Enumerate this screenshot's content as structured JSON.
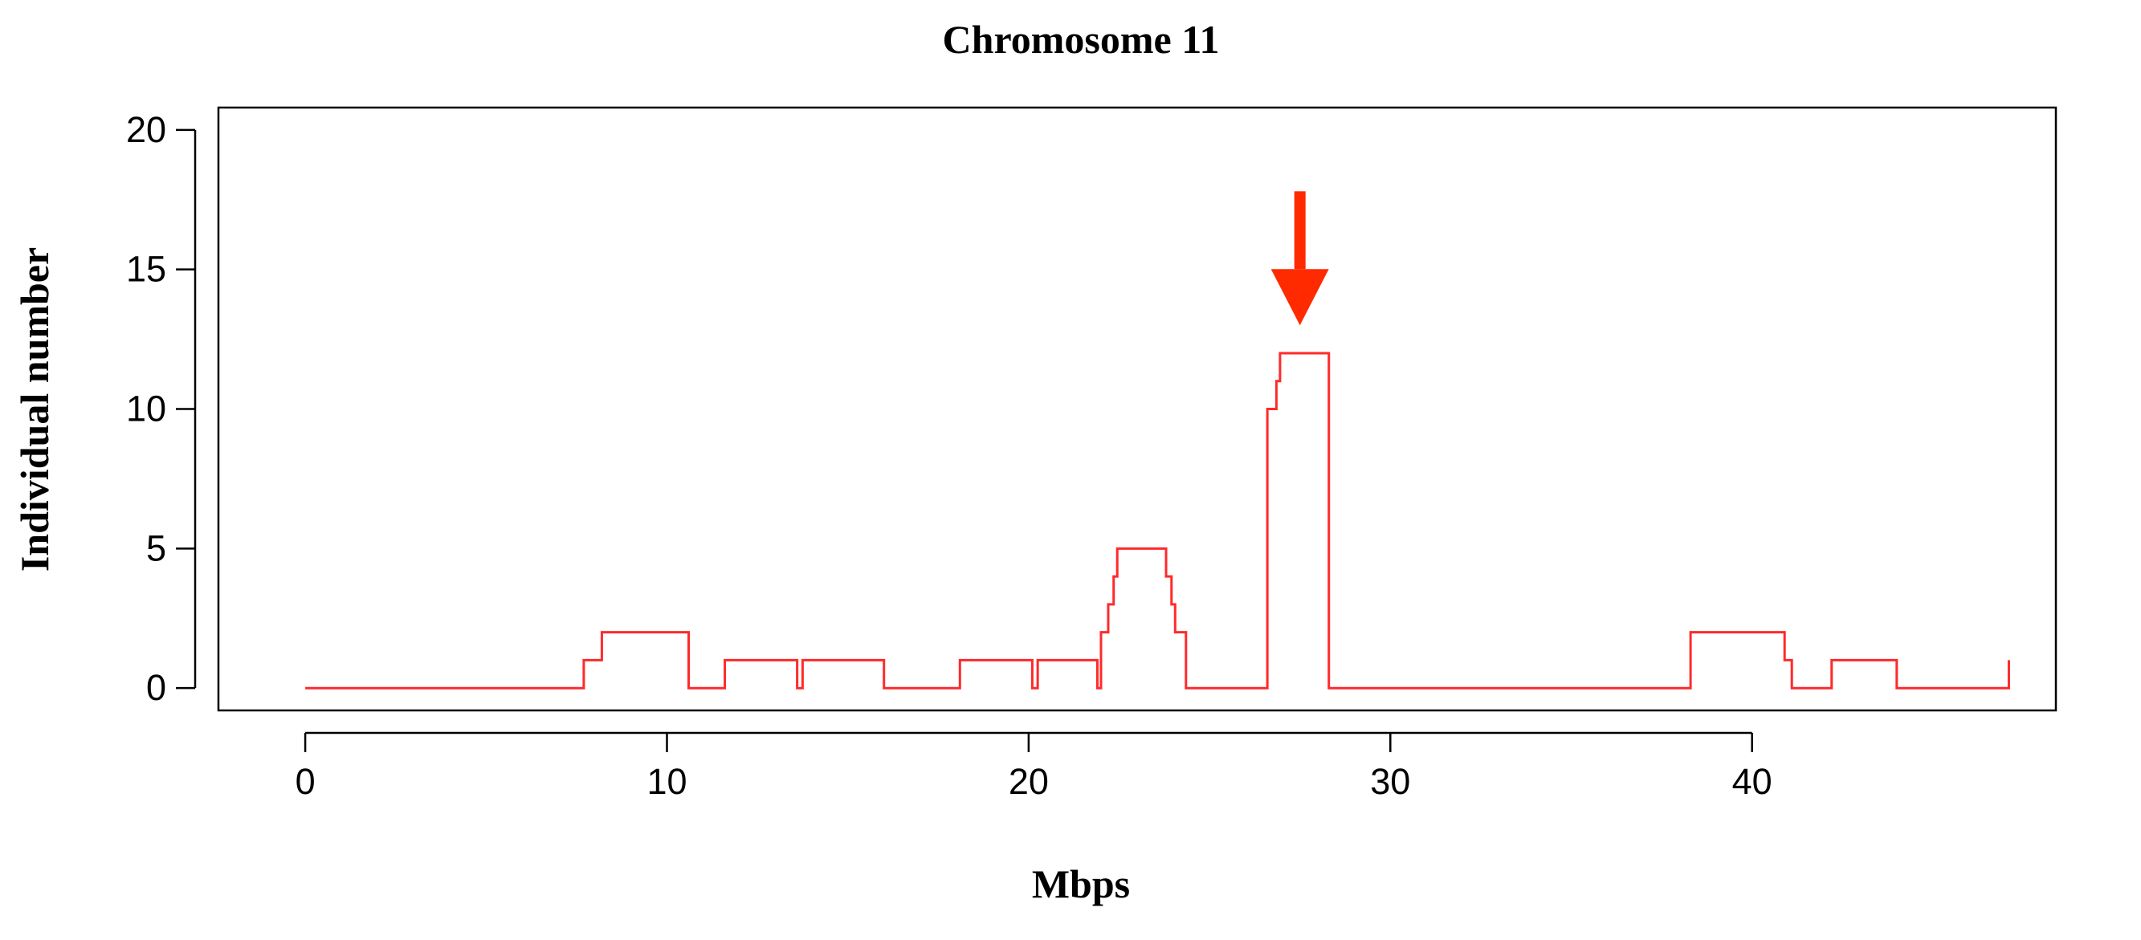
{
  "chart_data": {
    "type": "line",
    "step": true,
    "title": "Chromosome 11",
    "xlabel": "Mbps",
    "ylabel": "Individual number",
    "xlim": [
      -2.4,
      48.4
    ],
    "ylim": [
      -0.8,
      20.8
    ],
    "x_ticks": [
      0,
      10,
      20,
      30,
      40
    ],
    "y_ticks": [
      0,
      5,
      10,
      15,
      20
    ],
    "grid": false,
    "line_color": "#ff2a2a",
    "annotation": {
      "type": "arrow",
      "color": "#ff2a00",
      "x": 27.5,
      "y_from": 17.8,
      "y_to": 13.0,
      "meaning": "points to peak"
    },
    "series": [
      {
        "name": "Individual number",
        "points": [
          [
            0,
            0
          ],
          [
            7.7,
            0
          ],
          [
            7.7,
            1
          ],
          [
            8.2,
            1
          ],
          [
            8.2,
            2
          ],
          [
            10.6,
            2
          ],
          [
            10.6,
            0
          ],
          [
            11.6,
            0
          ],
          [
            11.6,
            1
          ],
          [
            13.6,
            1
          ],
          [
            13.6,
            0
          ],
          [
            13.75,
            0
          ],
          [
            13.75,
            1
          ],
          [
            16.0,
            1
          ],
          [
            16.0,
            0
          ],
          [
            18.1,
            0
          ],
          [
            18.1,
            1
          ],
          [
            20.1,
            1
          ],
          [
            20.1,
            0
          ],
          [
            20.25,
            0
          ],
          [
            20.25,
            1
          ],
          [
            21.9,
            1
          ],
          [
            21.9,
            0
          ],
          [
            22.0,
            0
          ],
          [
            22.0,
            2
          ],
          [
            22.2,
            2
          ],
          [
            22.2,
            3
          ],
          [
            22.35,
            3
          ],
          [
            22.35,
            4
          ],
          [
            22.45,
            4
          ],
          [
            22.45,
            5
          ],
          [
            23.8,
            5
          ],
          [
            23.8,
            4
          ],
          [
            23.95,
            4
          ],
          [
            23.95,
            3
          ],
          [
            24.05,
            3
          ],
          [
            24.05,
            2
          ],
          [
            24.35,
            2
          ],
          [
            24.35,
            0
          ],
          [
            26.6,
            0
          ],
          [
            26.6,
            10
          ],
          [
            26.85,
            10
          ],
          [
            26.85,
            11
          ],
          [
            26.95,
            11
          ],
          [
            26.95,
            12
          ],
          [
            28.3,
            12
          ],
          [
            28.3,
            0
          ],
          [
            38.3,
            0
          ],
          [
            38.3,
            2
          ],
          [
            40.9,
            2
          ],
          [
            40.9,
            1
          ],
          [
            41.1,
            1
          ],
          [
            41.1,
            0
          ],
          [
            42.2,
            0
          ],
          [
            42.2,
            1
          ],
          [
            44.0,
            1
          ],
          [
            44.0,
            0
          ],
          [
            47.1,
            0
          ],
          [
            47.1,
            1
          ]
        ]
      }
    ]
  }
}
